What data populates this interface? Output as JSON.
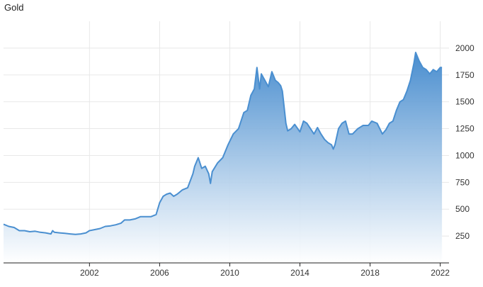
{
  "chart_data": {
    "type": "area",
    "title": "Gold",
    "xlabel": "",
    "ylabel": "",
    "x_ticks": [
      2002,
      2006,
      2010,
      2014,
      2018,
      2022
    ],
    "y_ticks": [
      250,
      500,
      750,
      1000,
      1250,
      1500,
      1750,
      2000
    ],
    "xlim": [
      1997.1,
      2022.5
    ],
    "ylim": [
      0,
      2250
    ],
    "grid": true,
    "legend": "none",
    "colors": {
      "line": "#4a8fd0",
      "fill_top": "#3f87cc",
      "fill_bottom": "#ffffff",
      "grid": "#e8e8e8",
      "axis": "#222222"
    },
    "series": [
      {
        "x": [
          1997.1,
          1997.4,
          1997.7,
          1998.0,
          1998.3,
          1998.6,
          1998.9,
          1999.2,
          1999.5,
          1999.8,
          1999.9,
          2000.0,
          2000.3,
          2000.6,
          2000.9,
          2001.2,
          2001.5,
          2001.8,
          2002.0,
          2002.3,
          2002.6,
          2002.9,
          2003.2,
          2003.5,
          2003.8,
          2004.0,
          2004.3,
          2004.6,
          2004.9,
          2005.2,
          2005.5,
          2005.8,
          2006.0,
          2006.2,
          2006.4,
          2006.6,
          2006.8,
          2007.0,
          2007.3,
          2007.6,
          2007.9,
          2008.0,
          2008.2,
          2008.4,
          2008.6,
          2008.8,
          2008.9,
          2009.0,
          2009.3,
          2009.6,
          2009.9,
          2010.2,
          2010.5,
          2010.8,
          2011.0,
          2011.2,
          2011.4,
          2011.55,
          2011.7,
          2011.8,
          2012.0,
          2012.2,
          2012.4,
          2012.6,
          2012.75,
          2012.9,
          2013.0,
          2013.2,
          2013.3,
          2013.5,
          2013.7,
          2014.0,
          2014.2,
          2014.4,
          2014.6,
          2014.8,
          2015.0,
          2015.2,
          2015.4,
          2015.6,
          2015.8,
          2015.9,
          2016.0,
          2016.2,
          2016.4,
          2016.6,
          2016.8,
          2017.0,
          2017.3,
          2017.6,
          2017.9,
          2018.1,
          2018.4,
          2018.7,
          2018.9,
          2019.1,
          2019.3,
          2019.5,
          2019.7,
          2019.9,
          2020.1,
          2020.3,
          2020.5,
          2020.6,
          2020.8,
          2021.0,
          2021.2,
          2021.4,
          2021.6,
          2021.8,
          2022.0,
          2022.1
        ],
        "y": [
          360,
          340,
          330,
          300,
          300,
          290,
          295,
          285,
          280,
          270,
          300,
          285,
          280,
          275,
          270,
          265,
          270,
          280,
          300,
          310,
          320,
          340,
          345,
          355,
          370,
          400,
          400,
          410,
          430,
          430,
          430,
          450,
          560,
          620,
          640,
          650,
          620,
          640,
          680,
          700,
          830,
          900,
          980,
          880,
          900,
          830,
          740,
          850,
          930,
          980,
          1100,
          1200,
          1250,
          1400,
          1420,
          1560,
          1620,
          1820,
          1620,
          1760,
          1700,
          1640,
          1780,
          1700,
          1680,
          1650,
          1600,
          1300,
          1230,
          1250,
          1290,
          1220,
          1320,
          1300,
          1250,
          1200,
          1260,
          1200,
          1150,
          1120,
          1100,
          1060,
          1100,
          1250,
          1300,
          1320,
          1200,
          1200,
          1250,
          1280,
          1280,
          1320,
          1300,
          1200,
          1240,
          1300,
          1320,
          1420,
          1500,
          1520,
          1600,
          1700,
          1860,
          1960,
          1880,
          1820,
          1800,
          1760,
          1800,
          1780,
          1820,
          1820
        ]
      }
    ]
  }
}
